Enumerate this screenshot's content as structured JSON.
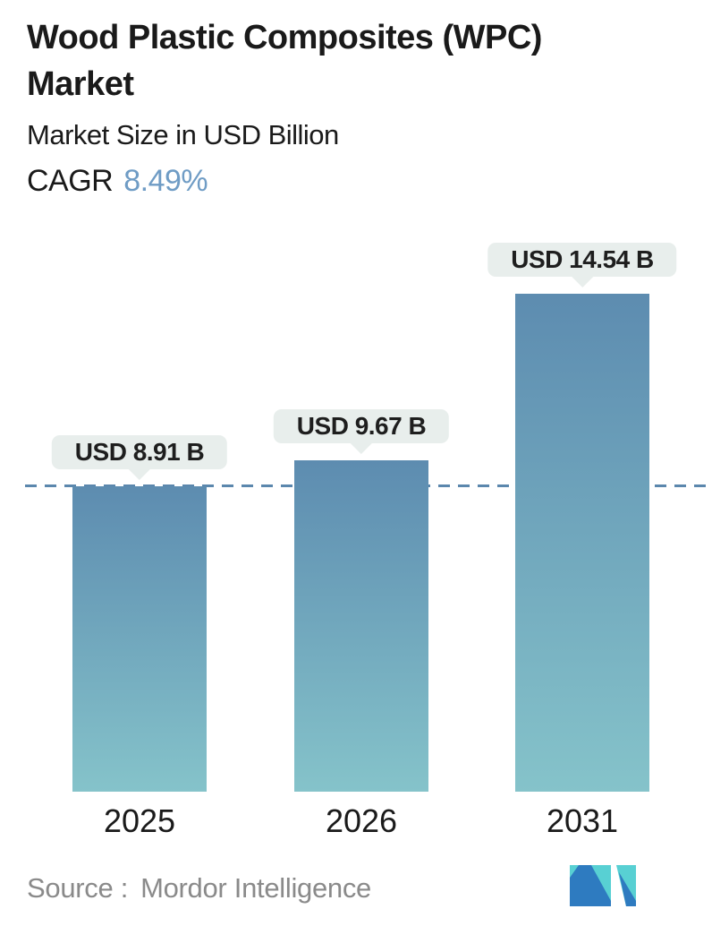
{
  "header": {
    "title": "Wood Plastic Composites (WPC) Market",
    "subtitle": "Market Size in USD Billion",
    "cagr_label": "CAGR",
    "cagr_value": "8.49%"
  },
  "chart_data": {
    "type": "bar",
    "title": "Wood Plastic Composites (WPC) Market",
    "subtitle": "Market Size in USD Billion",
    "unit": "USD Billion",
    "cagr_percent": 8.49,
    "categories": [
      "2025",
      "2026",
      "2031"
    ],
    "values": [
      8.91,
      9.67,
      14.54
    ],
    "value_labels": [
      "USD 8.91 B",
      "USD 9.67 B",
      "USD 14.54 B"
    ],
    "baseline": {
      "value": 8.91,
      "style": "dashed"
    },
    "ylim": [
      0,
      14.54
    ],
    "grid": false,
    "legend": false,
    "bar_color_top": "#5d8cb0",
    "bar_color_bottom": "#85c3ca"
  },
  "footer": {
    "source_label": "Source :",
    "source_value": "Mordor Intelligence",
    "logo": "mordor-intelligence-logo"
  },
  "colors": {
    "accent_blue": "#6f9cc5",
    "dashed_line": "#5b87ad",
    "bar_top": "#5d8cb0",
    "bar_bottom": "#85c3ca",
    "badge_bg": "#e8eeec",
    "badge_text": "#1e1e1e",
    "text_dark": "#1a1a1a",
    "text_gray": "#8a8a8a",
    "logo_teal": "#58d0d3",
    "logo_blue": "#2e7bc0"
  }
}
